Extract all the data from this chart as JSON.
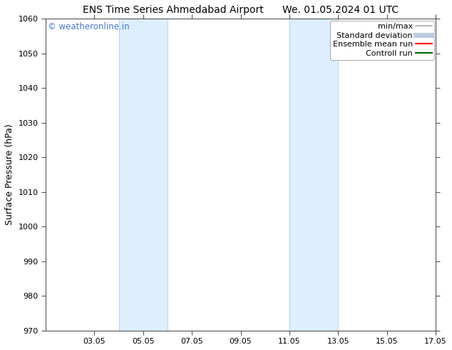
{
  "title": "ENS Time Series Ahmedabad Airport      We. 01.05.2024 01 UTC",
  "ylabel": "Surface Pressure (hPa)",
  "ylim": [
    970,
    1060
  ],
  "yticks": [
    970,
    980,
    990,
    1000,
    1010,
    1020,
    1030,
    1040,
    1050,
    1060
  ],
  "xlim_start": 1.05,
  "xlim_end": 17.05,
  "xticks": [
    3.05,
    5.05,
    7.05,
    9.05,
    11.05,
    13.05,
    15.05,
    17.05
  ],
  "xlabel_labels": [
    "03.05",
    "05.05",
    "07.05",
    "09.05",
    "11.05",
    "13.05",
    "15.05",
    "17.05"
  ],
  "shaded_bands": [
    {
      "x_start": 4.05,
      "x_end": 6.05
    },
    {
      "x_start": 11.05,
      "x_end": 13.05
    }
  ],
  "shaded_color": "#ddeeff",
  "shaded_edge_color": "#b8d4ee",
  "background_color": "#ffffff",
  "watermark_text": "© weatheronline.in",
  "watermark_color": "#4477cc",
  "legend_items": [
    {
      "label": "min/max",
      "color": "#aaaaaa",
      "lw": 1.2
    },
    {
      "label": "Standard deviation",
      "color": "#bbccdd",
      "lw": 5
    },
    {
      "label": "Ensemble mean run",
      "color": "#ff0000",
      "lw": 1.5
    },
    {
      "label": "Controll run",
      "color": "#006600",
      "lw": 1.5
    }
  ],
  "title_fontsize": 10,
  "axis_label_fontsize": 9,
  "tick_fontsize": 8,
  "legend_fontsize": 8,
  "watermark_fontsize": 8.5
}
